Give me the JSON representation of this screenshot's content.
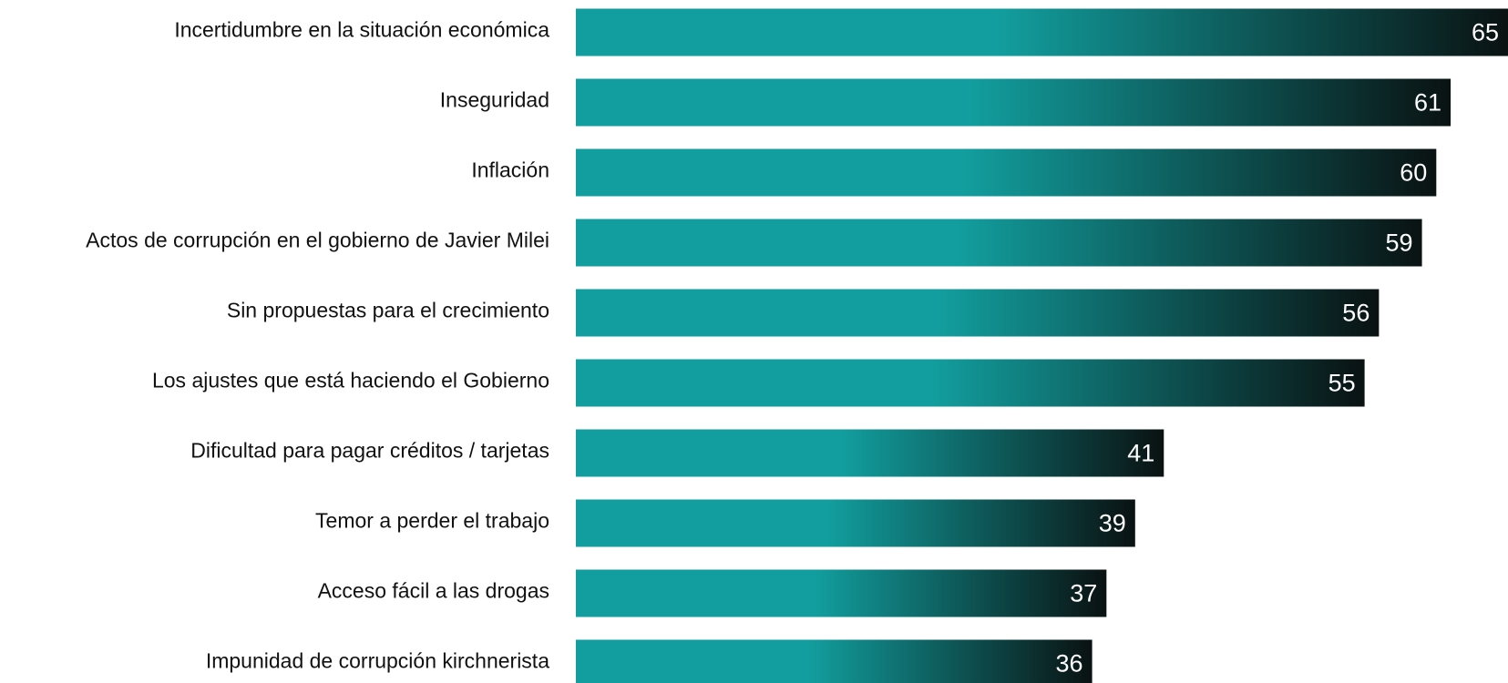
{
  "chart_data": {
    "type": "bar",
    "orientation": "horizontal",
    "categories": [
      "Incertidumbre en la situación económica",
      "Inseguridad",
      "Inflación",
      "Actos de corrupción en el gobierno de Javier Milei",
      "Sin propuestas para el crecimiento",
      "Los ajustes que está haciendo el Gobierno",
      "Dificultad para pagar créditos / tarjetas",
      "Temor a perder el trabajo",
      "Acceso fácil a las drogas",
      "Impunidad de corrupción kirchnerista"
    ],
    "values": [
      65,
      61,
      60,
      59,
      56,
      55,
      41,
      39,
      37,
      36
    ],
    "color": "#129e9e"
  }
}
